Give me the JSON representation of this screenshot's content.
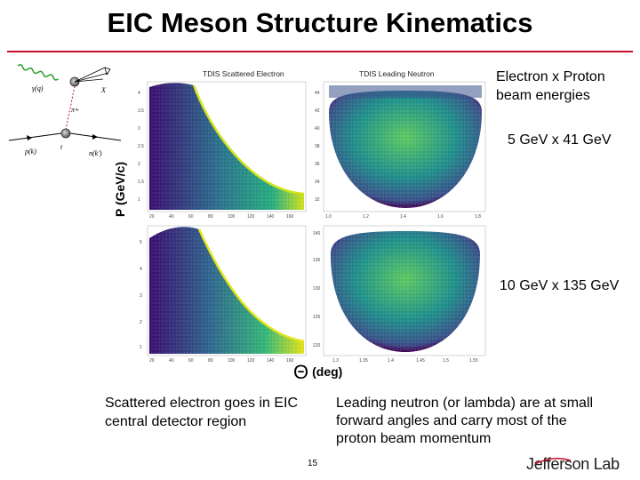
{
  "slide": {
    "title": "EIC Meson Structure Kinematics",
    "beam_energies_label": "Electron x Proton beam energies",
    "energy_config_1": "5 GeV x 41 GeV",
    "energy_config_2": "10 GeV x 135 GeV",
    "axis_y_label": "P (GeV/c)",
    "axis_x_symbol": "Θ",
    "axis_x_unit": "(deg)",
    "caption_left": "Scattered electron goes in EIC central detector region",
    "caption_right": "Leading neutron (or lambda) are at small forward angles and carry most of the proton beam momentum",
    "page_number": "15",
    "logo": "Jefferson Lab",
    "accent_color": "#c8102e"
  },
  "diagram": {
    "labels": {
      "gamma_q": "γ(q)",
      "pi_plus": "π+",
      "x": "X",
      "t": "t",
      "p_k": "p(k)",
      "n_k": "n(k')"
    }
  },
  "panels": {
    "top_left_title": "TDIS Scattered Electron",
    "top_right_title": "TDIS Leading Neutron",
    "top_left_x_ticks": [
      "20",
      "40",
      "60",
      "80",
      "100",
      "120",
      "140",
      "160"
    ],
    "top_left_y_ticks": [
      "4",
      "3.5",
      "3",
      "2.5",
      "2",
      "1.5",
      "1"
    ],
    "top_right_x_ticks": [
      "1.0",
      "1.2",
      "1.4",
      "1.6",
      "1.8"
    ],
    "top_right_y_ticks": [
      "44",
      "42",
      "40",
      "38",
      "36",
      "34",
      "32"
    ],
    "bottom_left_x_ticks": [
      "20",
      "40",
      "60",
      "80",
      "100",
      "120",
      "140",
      "160"
    ],
    "bottom_left_y_ticks": [
      "5",
      "4",
      "3",
      "2",
      "1"
    ],
    "bottom_right_x_ticks": [
      "1.3",
      "1.35",
      "1.4",
      "1.45",
      "1.5",
      "1.55"
    ],
    "bottom_right_y_ticks": [
      "140",
      "135",
      "130",
      "125",
      "120"
    ]
  }
}
